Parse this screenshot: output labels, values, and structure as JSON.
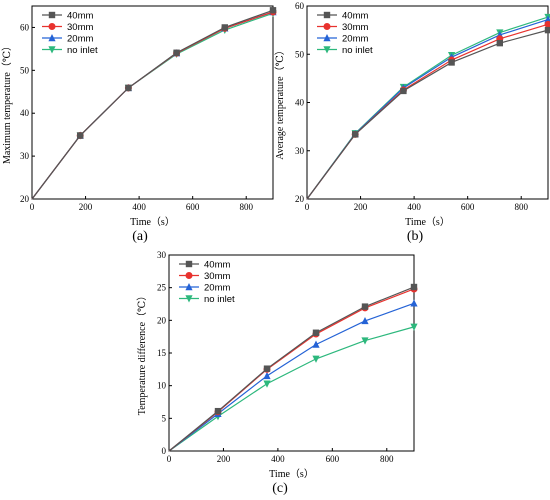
{
  "chart_data": [
    {
      "type": "line",
      "panel_label": "(a)",
      "xlabel": "Time（s）",
      "ylabel": "Maximum temperature（℃）",
      "xlim": [
        0,
        900
      ],
      "ylim": [
        20,
        65
      ],
      "xticks": [
        0,
        200,
        400,
        600,
        800
      ],
      "yticks": [
        20,
        30,
        40,
        50,
        60
      ],
      "legend": "top-left",
      "x": [
        0,
        180,
        360,
        540,
        720,
        900
      ],
      "series": [
        {
          "name": "40mm",
          "color": "#555555",
          "marker": "square",
          "values": [
            20,
            34.8,
            45.9,
            54.1,
            60.0,
            64.0
          ]
        },
        {
          "name": "30mm",
          "color": "#e8322e",
          "marker": "circle",
          "values": [
            20,
            34.8,
            45.9,
            54.0,
            59.8,
            63.6
          ]
        },
        {
          "name": "20mm",
          "color": "#2563d6",
          "marker": "triangle-up",
          "values": [
            20,
            34.8,
            45.9,
            54.0,
            59.8,
            63.6
          ]
        },
        {
          "name": "no inlet",
          "color": "#2db87d",
          "marker": "triangle-down",
          "values": [
            20,
            34.8,
            45.9,
            53.8,
            59.4,
            63.3
          ]
        }
      ]
    },
    {
      "type": "line",
      "panel_label": "(b)",
      "xlabel": "Time（s）",
      "ylabel": "Average temperature（℃）",
      "xlim": [
        0,
        900
      ],
      "ylim": [
        20,
        60
      ],
      "xticks": [
        0,
        200,
        400,
        600,
        800
      ],
      "yticks": [
        20,
        30,
        40,
        50,
        60
      ],
      "legend": "top-left",
      "x": [
        0,
        180,
        360,
        540,
        720,
        900
      ],
      "series": [
        {
          "name": "40mm",
          "color": "#555555",
          "marker": "square",
          "values": [
            20,
            33.4,
            42.4,
            48.3,
            52.3,
            55.0
          ]
        },
        {
          "name": "30mm",
          "color": "#e8322e",
          "marker": "circle",
          "values": [
            20,
            33.4,
            42.6,
            48.8,
            53.2,
            56.2
          ]
        },
        {
          "name": "20mm",
          "color": "#2563d6",
          "marker": "triangle-up",
          "values": [
            20,
            33.5,
            43.0,
            49.4,
            54.0,
            57.2
          ]
        },
        {
          "name": "no inlet",
          "color": "#2db87d",
          "marker": "triangle-down",
          "values": [
            20,
            33.6,
            43.2,
            49.8,
            54.5,
            57.7
          ]
        }
      ]
    },
    {
      "type": "line",
      "panel_label": "(c)",
      "xlabel": "Time（s）",
      "ylabel": "Temperature difference（℃）",
      "xlim": [
        0,
        900
      ],
      "ylim": [
        0,
        30
      ],
      "xticks": [
        0,
        200,
        400,
        600,
        800
      ],
      "yticks": [
        0,
        5,
        10,
        15,
        20,
        25,
        30
      ],
      "legend": "top-left",
      "x": [
        0,
        180,
        360,
        540,
        720,
        900
      ],
      "series": [
        {
          "name": "40mm",
          "color": "#555555",
          "marker": "square",
          "values": [
            0,
            6.1,
            12.6,
            18.1,
            22.1,
            25.1
          ]
        },
        {
          "name": "30mm",
          "color": "#e8322e",
          "marker": "circle",
          "values": [
            0,
            6.0,
            12.5,
            17.9,
            21.9,
            24.8
          ]
        },
        {
          "name": "20mm",
          "color": "#2563d6",
          "marker": "triangle-up",
          "values": [
            0,
            5.7,
            11.5,
            16.3,
            19.9,
            22.6
          ]
        },
        {
          "name": "no inlet",
          "color": "#2db87d",
          "marker": "triangle-down",
          "values": [
            0,
            5.3,
            10.3,
            14.1,
            16.9,
            19.0
          ]
        }
      ]
    }
  ]
}
